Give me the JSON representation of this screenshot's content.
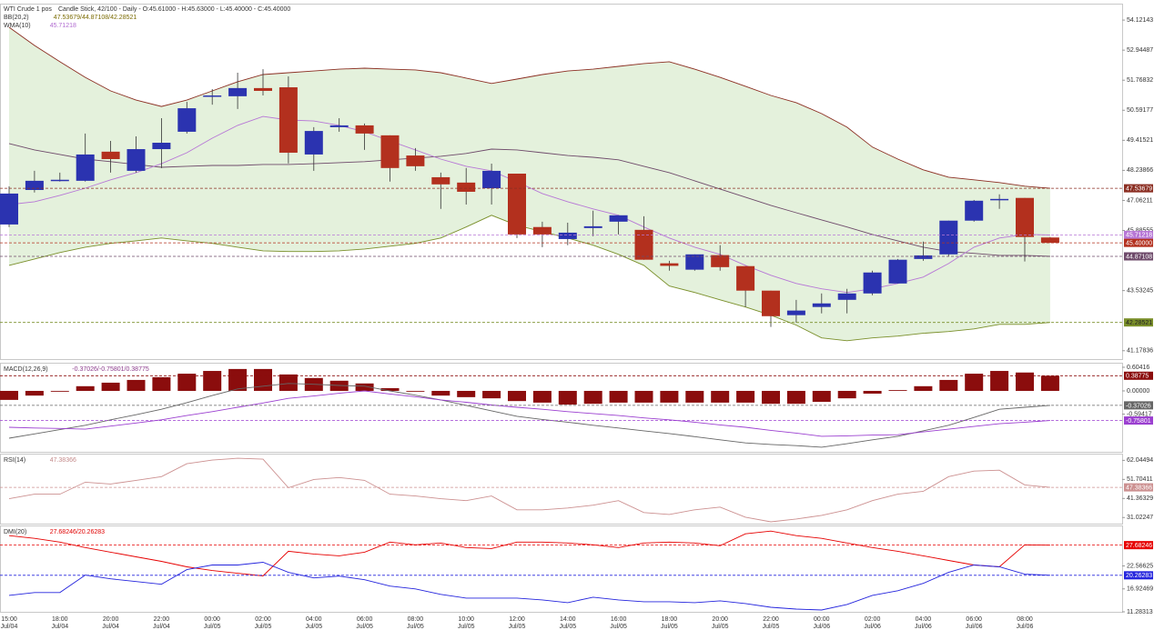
{
  "header": {
    "title": "WTI Crude 1 pos",
    "subtitle": "Candle Stick, 42/100 - Daily - O:45.61000 - H:45.63000 - L:45.40000 - C:45.40000"
  },
  "chart_data": [
    {
      "type": "candlestick",
      "categories": [
        "15:00",
        null,
        "18:00",
        null,
        "20:00",
        null,
        "22:00",
        null,
        "00:00",
        null,
        "02:00",
        null,
        "04:00",
        null,
        "06:00",
        null,
        "08:00",
        null,
        "10:00",
        null,
        "12:00",
        null,
        "14:00",
        null,
        "16:00",
        null,
        "18:00",
        null,
        "20:00",
        null,
        "22:00",
        null,
        "00:00",
        null,
        "02:00",
        null,
        "04:00",
        null,
        "06:00",
        null,
        "08:00",
        null
      ],
      "dates": [
        "Jul/04",
        null,
        "Jul/04",
        null,
        "Jul/04",
        null,
        "Jul/04",
        null,
        "Jul/05",
        null,
        "Jul/05",
        null,
        "Jul/05",
        null,
        "Jul/05",
        null,
        "Jul/05",
        null,
        "Jul/05",
        null,
        "Jul/05",
        null,
        "Jul/05",
        null,
        "Jul/05",
        null,
        "Jul/05",
        null,
        "Jul/05",
        null,
        "Jul/05",
        null,
        "Jul/06",
        null,
        "Jul/06",
        null,
        "Jul/06",
        null,
        "Jul/06",
        null,
        "Jul/06",
        null
      ],
      "open": [
        46.12,
        47.47,
        47.83,
        47.83,
        48.97,
        48.22,
        49.07,
        49.75,
        51.12,
        51.14,
        51.46,
        51.49,
        48.86,
        49.93,
        50.0,
        49.61,
        48.82,
        47.97,
        47.76,
        47.54,
        48.11,
        46.02,
        45.55,
        45.98,
        46.23,
        45.91,
        44.6,
        44.35,
        44.92,
        44.49,
        43.53,
        42.57,
        42.89,
        43.17,
        43.42,
        43.81,
        44.77,
        44.95,
        46.27,
        47.09,
        47.16,
        45.61
      ],
      "high": [
        47.61,
        48.22,
        48.15,
        49.68,
        49.39,
        49.57,
        50.28,
        50.92,
        51.42,
        52.06,
        52.2,
        51.92,
        49.93,
        50.28,
        50.07,
        49.61,
        49.11,
        48.15,
        48.33,
        48.5,
        48.11,
        46.23,
        46.19,
        46.66,
        46.48,
        46.44,
        44.7,
        44.95,
        45.31,
        44.49,
        43.53,
        43.17,
        43.42,
        43.6,
        44.31,
        44.77,
        45.45,
        46.27,
        47.08,
        47.3,
        47.16,
        45.63
      ],
      "low": [
        46.02,
        47.37,
        47.8,
        47.8,
        48.15,
        48.15,
        48.33,
        49.68,
        50.81,
        50.64,
        51.17,
        48.51,
        48.22,
        49.75,
        49.04,
        47.8,
        48.22,
        46.73,
        46.9,
        46.9,
        45.59,
        45.23,
        45.31,
        45.66,
        45.73,
        44.74,
        44.31,
        44.31,
        44.31,
        42.89,
        42.11,
        42.28,
        42.64,
        42.64,
        43.35,
        43.81,
        44.7,
        44.88,
        46.23,
        46.73,
        44.67,
        45.4
      ],
      "close": [
        47.33,
        47.83,
        47.87,
        48.86,
        48.68,
        49.07,
        49.32,
        50.67,
        51.17,
        51.46,
        51.35,
        48.93,
        49.78,
        50.0,
        49.68,
        48.33,
        48.4,
        47.69,
        47.4,
        48.22,
        45.73,
        45.73,
        45.8,
        46.05,
        46.48,
        44.74,
        44.5,
        44.95,
        44.45,
        43.53,
        42.53,
        42.75,
        43.03,
        43.42,
        44.24,
        44.74,
        44.91,
        46.27,
        47.05,
        47.12,
        45.63,
        45.4
      ],
      "close_label": "45.40000",
      "up_color": "#2b33b0",
      "down_color": "#b3301e",
      "wick_color": "#333333",
      "ylim": [
        40.85,
        54.73
      ],
      "yticks": [
        54.12143,
        52.94487,
        51.76832,
        50.59177,
        49.41521,
        48.23866,
        47.06211,
        45.88555,
        43.53245,
        41.17836
      ],
      "overlays": [
        {
          "label": "BB(20,2)",
          "value_text": "47.53679/44.87108/42.28521",
          "value_color": "#7a6a00",
          "band_color": "#e4f1dc",
          "series": [
            {
              "color": "#8b2e22",
              "values": [
                53.84,
                53.13,
                52.49,
                51.88,
                51.35,
                50.99,
                50.74,
                50.99,
                51.35,
                51.71,
                51.99,
                52.06,
                52.13,
                52.2,
                52.24,
                52.2,
                52.17,
                52.06,
                51.85,
                51.64,
                51.81,
                51.99,
                52.13,
                52.2,
                52.31,
                52.42,
                52.49,
                52.2,
                51.88,
                51.53,
                51.17,
                50.89,
                50.46,
                49.93,
                49.15,
                48.68,
                48.26,
                47.97,
                47.87,
                47.76,
                47.62,
                47.53679
              ]
            },
            {
              "color": "#6e4a6a",
              "values": [
                49.29,
                49.04,
                48.86,
                48.68,
                48.58,
                48.47,
                48.36,
                48.4,
                48.43,
                48.43,
                48.47,
                48.47,
                48.5,
                48.54,
                48.58,
                48.65,
                48.72,
                48.79,
                48.9,
                49.07,
                49.04,
                48.93,
                48.82,
                48.75,
                48.65,
                48.4,
                48.15,
                47.83,
                47.51,
                47.19,
                46.87,
                46.58,
                46.3,
                46.02,
                45.73,
                45.48,
                45.23,
                45.06,
                44.99,
                44.91,
                44.91,
                44.87108
              ]
            },
            {
              "color": "#7a8f2a",
              "values": [
                44.52,
                44.77,
                45.02,
                45.23,
                45.38,
                45.48,
                45.59,
                45.48,
                45.38,
                45.23,
                45.09,
                45.06,
                45.06,
                45.09,
                45.16,
                45.27,
                45.38,
                45.59,
                46.02,
                46.48,
                46.09,
                45.84,
                45.59,
                45.31,
                44.95,
                44.52,
                43.71,
                43.46,
                43.17,
                42.89,
                42.57,
                42.18,
                41.68,
                41.57,
                41.68,
                41.75,
                41.86,
                41.93,
                42.03,
                42.21,
                42.21,
                42.28521
              ]
            }
          ]
        },
        {
          "label": "WMA(10)",
          "value_text": "45.71218",
          "value_color": "#b06ad0",
          "series": [
            {
              "color": "#b777d6",
              "values": [
                46.9,
                47.01,
                47.26,
                47.54,
                47.87,
                48.15,
                48.5,
                48.93,
                49.5,
                50.0,
                50.35,
                50.21,
                50.17,
                50.0,
                49.75,
                49.39,
                49.04,
                48.68,
                48.4,
                48.22,
                47.79,
                47.33,
                47.01,
                46.73,
                46.48,
                46.02,
                45.59,
                45.23,
                44.95,
                44.52,
                44.13,
                43.81,
                43.6,
                43.46,
                43.6,
                43.81,
                44.06,
                44.59,
                45.23,
                45.59,
                45.73,
                45.71218
              ]
            }
          ]
        }
      ]
    },
    {
      "type": "macd",
      "label": "MACD(12,26,9)",
      "value_text": "-0.37026/-0.75801/0.38775",
      "value_color": "#8b3a8b",
      "ylim": [
        -1.558,
        0.697
      ],
      "yticks": [
        0.60416,
        {
          "value": 0,
          "label": "0.00000"
        },
        -0.59417
      ],
      "series": [
        {
          "kind": "bar",
          "color": "#8b0d0d",
          "values": [
            -0.23,
            -0.12,
            -0.02,
            0.12,
            0.21,
            0.28,
            0.35,
            0.44,
            0.51,
            0.56,
            0.56,
            0.42,
            0.33,
            0.26,
            0.19,
            0.07,
            -0.02,
            -0.12,
            -0.16,
            -0.19,
            -0.26,
            -0.3,
            -0.35,
            -0.33,
            -0.3,
            -0.3,
            -0.3,
            -0.3,
            -0.3,
            -0.3,
            -0.33,
            -0.33,
            -0.28,
            -0.19,
            -0.07,
            0.02,
            0.12,
            0.28,
            0.44,
            0.51,
            0.47,
            0.38775
          ]
        },
        {
          "kind": "line",
          "color": "#666666",
          "values": [
            -1.21,
            -1.1,
            -0.99,
            -0.88,
            -0.74,
            -0.61,
            -0.47,
            -0.3,
            -0.12,
            0.05,
            0.12,
            0.19,
            0.17,
            0.14,
            0.12,
            0.0,
            -0.11,
            -0.23,
            -0.37,
            -0.51,
            -0.65,
            -0.73,
            -0.8,
            -0.88,
            -0.95,
            -1.02,
            -1.09,
            -1.17,
            -1.25,
            -1.33,
            -1.37,
            -1.4,
            -1.44,
            -1.35,
            -1.25,
            -1.16,
            -1.02,
            -0.88,
            -0.68,
            -0.47,
            -0.42,
            -0.37026
          ]
        },
        {
          "kind": "line",
          "color": "#9b3fd0",
          "values": [
            -0.93,
            -0.95,
            -0.96,
            -0.98,
            -0.9,
            -0.82,
            -0.74,
            -0.63,
            -0.53,
            -0.42,
            -0.31,
            -0.19,
            -0.13,
            -0.06,
            0.0,
            -0.08,
            -0.15,
            -0.23,
            -0.29,
            -0.36,
            -0.42,
            -0.47,
            -0.53,
            -0.58,
            -0.63,
            -0.69,
            -0.74,
            -0.8,
            -0.87,
            -0.93,
            -1.01,
            -1.08,
            -1.16,
            -1.15,
            -1.13,
            -1.12,
            -1.05,
            -0.98,
            -0.91,
            -0.84,
            -0.8,
            -0.75801
          ]
        }
      ]
    },
    {
      "type": "line",
      "label": "RSI(14)",
      "value_text": "47.38366",
      "value_color": "#c48a8a",
      "ylim": [
        27.7,
        65.2
      ],
      "yticks": [
        62.04494,
        51.70411,
        41.36329,
        31.02247
      ],
      "series": [
        {
          "color": "#cc9090",
          "values": [
            41.2,
            43.7,
            43.7,
            50.2,
            49.2,
            51.2,
            53.2,
            60.2,
            62.2,
            63.2,
            62.7,
            47.2,
            51.7,
            52.7,
            51.2,
            43.7,
            42.7,
            41.2,
            40.2,
            42.7,
            35.2,
            35.2,
            36.2,
            37.7,
            40.2,
            33.7,
            32.7,
            35.2,
            36.7,
            31.2,
            28.7,
            30.2,
            32.2,
            35.2,
            40.2,
            43.7,
            45.2,
            53.2,
            56.2,
            56.7,
            48.7,
            47.38366
          ]
        }
      ]
    },
    {
      "type": "line",
      "label": "DMI(20)",
      "value_text": "27.68246/20.26283",
      "value_color": "#e00000",
      "ylim": [
        11.28313,
        32.3
      ],
      "yticks": [
        22.56625,
        16.92469,
        11.28313
      ],
      "series": [
        {
          "color": "#e60000",
          "values": [
            30.01,
            29.34,
            28.44,
            27.08,
            25.95,
            24.82,
            23.69,
            22.34,
            21.44,
            20.77,
            20.11,
            26.18,
            25.5,
            25.05,
            25.95,
            28.44,
            27.76,
            28.21,
            27.08,
            26.85,
            28.44,
            28.44,
            28.21,
            27.76,
            27.08,
            28.21,
            28.44,
            28.21,
            27.53,
            30.47,
            31.14,
            30.01,
            29.34,
            28.21,
            27.08,
            26.18,
            25.05,
            23.92,
            22.79,
            22.34,
            27.76,
            27.68246
          ]
        },
        {
          "color": "#2424dd",
          "values": [
            15.34,
            16.02,
            16.02,
            20.31,
            19.41,
            18.73,
            18.05,
            21.66,
            22.79,
            22.79,
            23.47,
            20.99,
            19.63,
            20.08,
            19.18,
            17.6,
            16.92,
            15.57,
            14.67,
            14.67,
            14.67,
            14.22,
            13.54,
            14.89,
            14.22,
            13.76,
            13.76,
            13.54,
            13.99,
            13.31,
            12.41,
            11.96,
            11.74,
            13.09,
            15.34,
            16.47,
            18.28,
            20.99,
            22.79,
            22.34,
            20.53,
            20.26283
          ]
        }
      ]
    }
  ]
}
